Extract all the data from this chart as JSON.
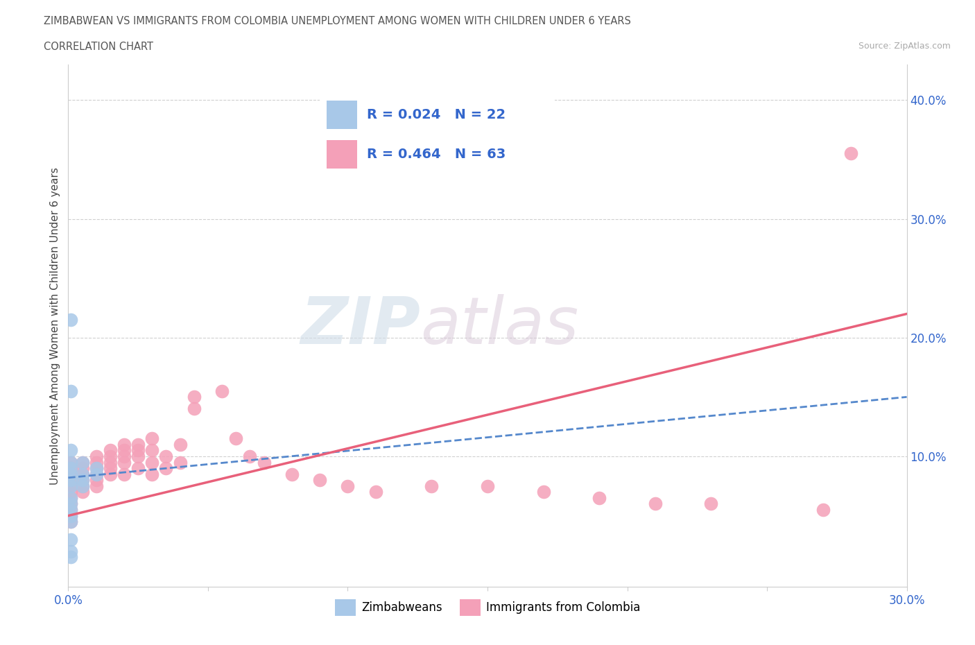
{
  "title": "ZIMBABWEAN VS IMMIGRANTS FROM COLOMBIA UNEMPLOYMENT AMONG WOMEN WITH CHILDREN UNDER 6 YEARS",
  "subtitle": "CORRELATION CHART",
  "source": "Source: ZipAtlas.com",
  "ylabel": "Unemployment Among Women with Children Under 6 years",
  "xmin": 0.0,
  "xmax": 0.3,
  "ymin": -0.01,
  "ymax": 0.43,
  "xticks": [
    0.0,
    0.05,
    0.1,
    0.15,
    0.2,
    0.25,
    0.3
  ],
  "xtick_labels": [
    "0.0%",
    "",
    "",
    "",
    "",
    "",
    "30.0%"
  ],
  "right_yticks": [
    0.1,
    0.2,
    0.3,
    0.4
  ],
  "right_ytick_labels": [
    "10.0%",
    "20.0%",
    "30.0%",
    "40.0%"
  ],
  "zimbabwe_color": "#a8c8e8",
  "colombia_color": "#f4a0b8",
  "zimbabwe_line_color": "#5588cc",
  "colombia_line_color": "#e8607a",
  "R_zimbabwe": 0.024,
  "N_zimbabwe": 22,
  "R_colombia": 0.464,
  "N_colombia": 63,
  "legend_text_color": "#3366cc",
  "watermark_zip": "ZIP",
  "watermark_atlas": "atlas",
  "zimbabwe_scatter": [
    [
      0.001,
      0.215
    ],
    [
      0.001,
      0.155
    ],
    [
      0.001,
      0.105
    ],
    [
      0.001,
      0.095
    ],
    [
      0.001,
      0.09
    ],
    [
      0.001,
      0.085
    ],
    [
      0.001,
      0.08
    ],
    [
      0.001,
      0.075
    ],
    [
      0.001,
      0.065
    ],
    [
      0.001,
      0.06
    ],
    [
      0.001,
      0.055
    ],
    [
      0.001,
      0.05
    ],
    [
      0.001,
      0.045
    ],
    [
      0.001,
      0.03
    ],
    [
      0.005,
      0.095
    ],
    [
      0.005,
      0.085
    ],
    [
      0.005,
      0.08
    ],
    [
      0.005,
      0.075
    ],
    [
      0.01,
      0.09
    ],
    [
      0.01,
      0.085
    ],
    [
      0.001,
      0.02
    ],
    [
      0.001,
      0.015
    ]
  ],
  "colombia_scatter": [
    [
      0.001,
      0.095
    ],
    [
      0.001,
      0.09
    ],
    [
      0.001,
      0.085
    ],
    [
      0.001,
      0.08
    ],
    [
      0.001,
      0.075
    ],
    [
      0.001,
      0.07
    ],
    [
      0.001,
      0.065
    ],
    [
      0.001,
      0.06
    ],
    [
      0.001,
      0.055
    ],
    [
      0.001,
      0.05
    ],
    [
      0.001,
      0.045
    ],
    [
      0.005,
      0.095
    ],
    [
      0.005,
      0.09
    ],
    [
      0.005,
      0.085
    ],
    [
      0.005,
      0.08
    ],
    [
      0.005,
      0.075
    ],
    [
      0.005,
      0.07
    ],
    [
      0.01,
      0.1
    ],
    [
      0.01,
      0.095
    ],
    [
      0.01,
      0.09
    ],
    [
      0.01,
      0.085
    ],
    [
      0.01,
      0.08
    ],
    [
      0.01,
      0.075
    ],
    [
      0.015,
      0.105
    ],
    [
      0.015,
      0.1
    ],
    [
      0.015,
      0.095
    ],
    [
      0.015,
      0.09
    ],
    [
      0.015,
      0.085
    ],
    [
      0.02,
      0.11
    ],
    [
      0.02,
      0.105
    ],
    [
      0.02,
      0.1
    ],
    [
      0.02,
      0.095
    ],
    [
      0.02,
      0.085
    ],
    [
      0.025,
      0.11
    ],
    [
      0.025,
      0.105
    ],
    [
      0.025,
      0.1
    ],
    [
      0.025,
      0.09
    ],
    [
      0.03,
      0.115
    ],
    [
      0.03,
      0.105
    ],
    [
      0.03,
      0.095
    ],
    [
      0.03,
      0.085
    ],
    [
      0.035,
      0.1
    ],
    [
      0.035,
      0.09
    ],
    [
      0.04,
      0.11
    ],
    [
      0.04,
      0.095
    ],
    [
      0.045,
      0.15
    ],
    [
      0.045,
      0.14
    ],
    [
      0.055,
      0.155
    ],
    [
      0.06,
      0.115
    ],
    [
      0.065,
      0.1
    ],
    [
      0.07,
      0.095
    ],
    [
      0.08,
      0.085
    ],
    [
      0.09,
      0.08
    ],
    [
      0.1,
      0.075
    ],
    [
      0.11,
      0.07
    ],
    [
      0.13,
      0.075
    ],
    [
      0.15,
      0.075
    ],
    [
      0.17,
      0.07
    ],
    [
      0.19,
      0.065
    ],
    [
      0.21,
      0.06
    ],
    [
      0.23,
      0.06
    ],
    [
      0.27,
      0.055
    ],
    [
      0.28,
      0.355
    ]
  ]
}
